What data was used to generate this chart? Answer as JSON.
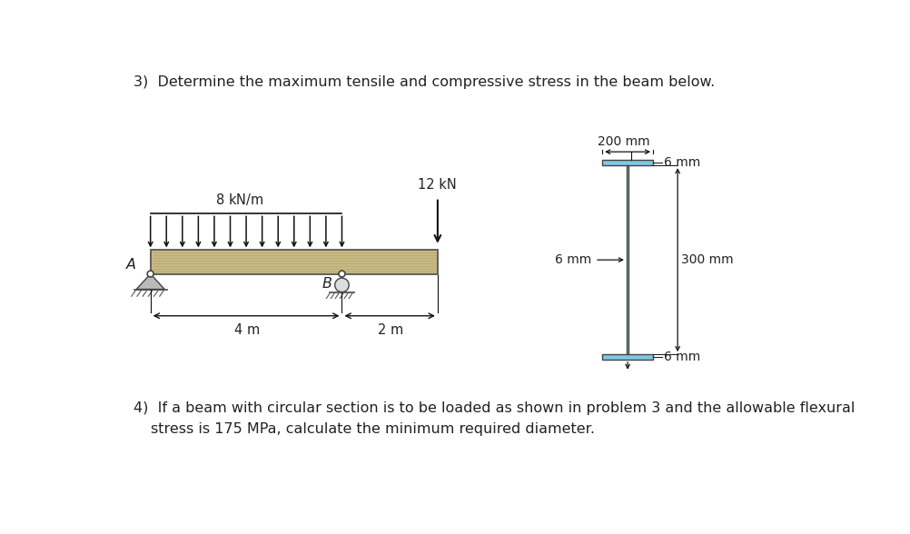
{
  "title3": "3)  Determine the maximum tensile and compressive stress in the beam below.",
  "title4_line1": "4)  If a beam with circular section is to be loaded as shown in problem 3 and the allowable flexural",
  "title4_line2": "stress is 175 MPa, calculate the minimum required diameter.",
  "bg_color": "#ffffff",
  "beam_color": "#c8b882",
  "beam_outline": "#555555",
  "i_beam_color": "#7ec8e3",
  "i_beam_outline": "#444444",
  "arrow_color": "#111111",
  "dim_color": "#111111",
  "text_color": "#222222",
  "label_fontsize": 10.5,
  "title_fontsize": 11.5
}
